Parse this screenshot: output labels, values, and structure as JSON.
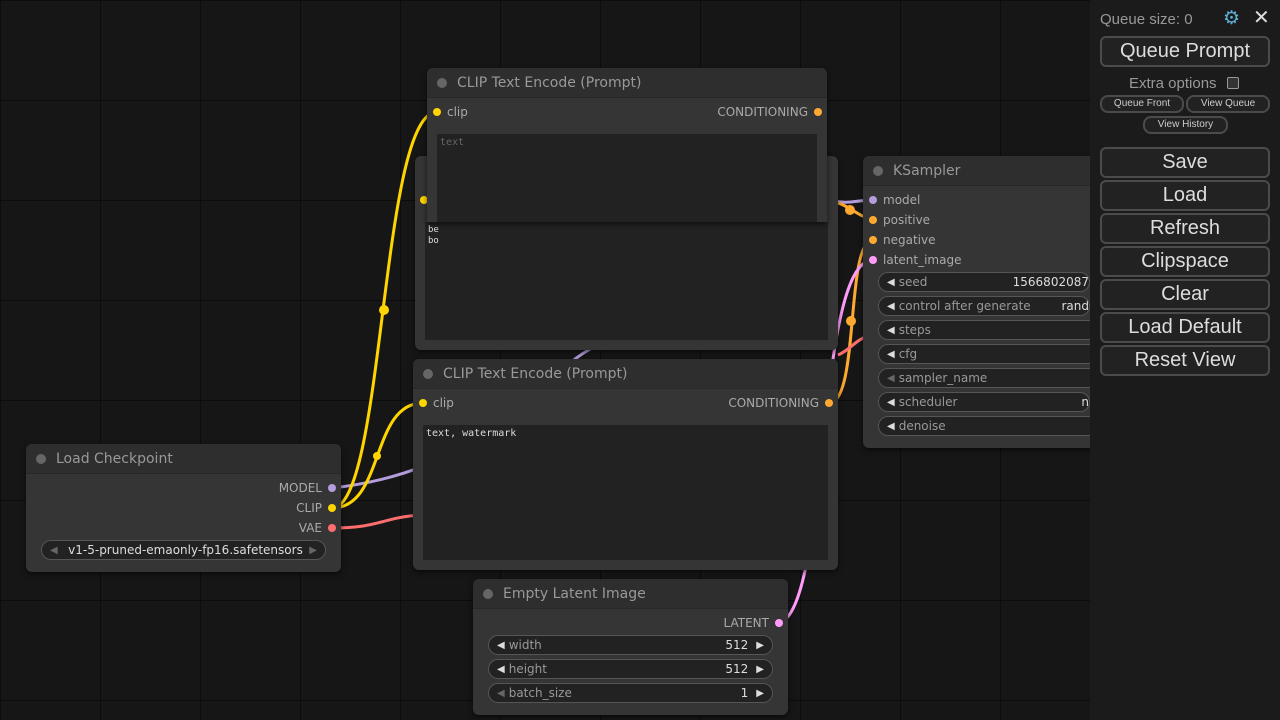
{
  "sidebar": {
    "queue_size": "Queue size: 0",
    "queue_prompt": "Queue Prompt",
    "extra_options": "Extra options",
    "extra_checked": false,
    "queue_front": "Queue Front",
    "view_queue": "View Queue",
    "view_history": "View History",
    "buttons": [
      "Save",
      "Load",
      "Refresh",
      "Clipspace",
      "Clear",
      "Load Default",
      "Reset View"
    ]
  },
  "colors": {
    "clip": "#ffd500",
    "model": "#b39ddb",
    "vae": "#ff6e6e",
    "conditioning": "#ffa931",
    "latent": "#ff9cf9"
  },
  "clip_top": {
    "title": "CLIP Text Encode (Prompt)",
    "input": "clip",
    "output": "CONDITIONING",
    "placeholder": "text"
  },
  "clip_back": {
    "text": "be\nbo"
  },
  "clip_bottom": {
    "title": "CLIP Text Encode (Prompt)",
    "input": "clip",
    "output": "CONDITIONING",
    "text": "text, watermark"
  },
  "ksampler": {
    "title": "KSampler",
    "inputs": [
      "model",
      "positive",
      "negative",
      "latent_image"
    ],
    "widgets": [
      {
        "label": "seed",
        "value": "1566802087"
      },
      {
        "label": "control after generate",
        "value": "rand"
      },
      {
        "label": "steps",
        "value": ""
      },
      {
        "label": "cfg",
        "value": ""
      },
      {
        "label": "sampler_name",
        "value": ""
      },
      {
        "label": "scheduler",
        "value": "n"
      },
      {
        "label": "denoise",
        "value": ""
      }
    ]
  },
  "checkpoint": {
    "title": "Load Checkpoint",
    "outputs": [
      "MODEL",
      "CLIP",
      "VAE"
    ],
    "ckpt_name": "v1-5-pruned-emaonly-fp16.safetensors"
  },
  "latent": {
    "title": "Empty Latent Image",
    "output": "LATENT",
    "widgets": [
      {
        "label": "width",
        "value": "512"
      },
      {
        "label": "height",
        "value": "512"
      },
      {
        "label": "batch_size",
        "value": "1"
      }
    ]
  }
}
